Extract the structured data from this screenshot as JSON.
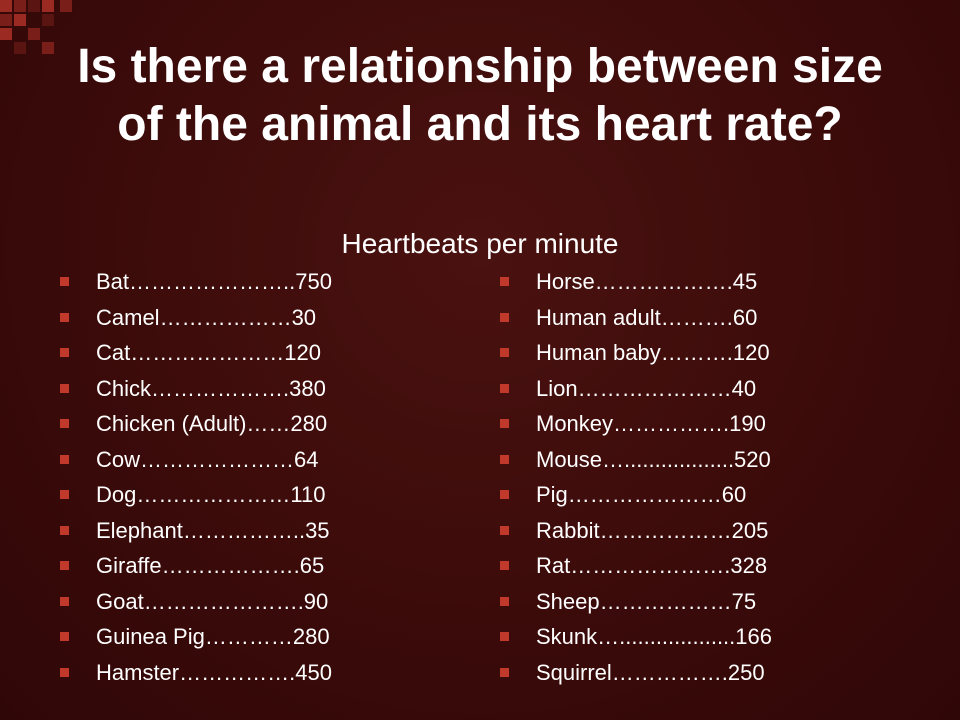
{
  "slide": {
    "title": "Is there a relationship between size of the animal and its heart rate?",
    "subtitle": "Heartbeats per minute",
    "accent_color": "#c0392b",
    "background_color": "#3a0a0a"
  },
  "left_items": [
    "Bat…………………..750",
    "Camel………………30",
    "Cat…………………120",
    "Chick……………….380",
    "Chicken (Adult)……280",
    "Cow…………………64",
    "Dog…………………110",
    "Elephant……………..35",
    "Giraffe……………….65",
    "Goat………………….90",
    "Guinea Pig…………280",
    "Hamster…………….450"
  ],
  "right_items": [
    "Horse……………….45",
    "Human adult……….60",
    "Human baby……….120",
    "Lion…………………40",
    "Monkey…………….190",
    "Mouse…..................520",
    "Pig…………………60",
    "Rabbit………………205",
    "Rat………………….328",
    "Sheep………………75",
    "Skunk…...................166",
    "Squirrel…………….250"
  ]
}
